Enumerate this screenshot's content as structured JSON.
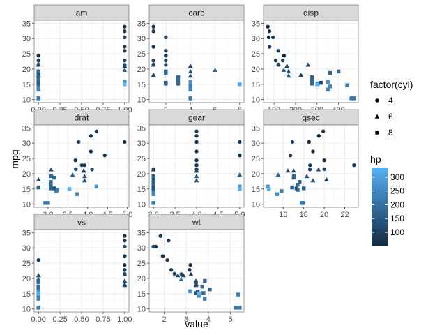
{
  "chart_data": {
    "type": "scatter",
    "xlabel": "value",
    "ylabel": "mpg",
    "ylim": [
      9,
      36
    ],
    "yticks": [
      10,
      15,
      20,
      25,
      30,
      35
    ],
    "grid": true,
    "legend_placement": "right",
    "shape_legend": {
      "title": "factor(cyl)",
      "items": [
        {
          "label": "4",
          "shape": "circle"
        },
        {
          "label": "6",
          "shape": "triangle"
        },
        {
          "label": "8",
          "shape": "square"
        }
      ]
    },
    "color_legend": {
      "title": "hp",
      "range": [
        52,
        335
      ],
      "ticks": [
        100,
        150,
        200,
        250,
        300
      ],
      "low_color": "#132B43",
      "high_color": "#56B1F7"
    },
    "colors": {
      "strip_bg": "#d9d9d9",
      "panel_border": "#7f7f7f",
      "grid_major": "#ebebeb",
      "grid_minor": "#f5f5f5"
    },
    "cars": [
      {
        "mpg": 21.0,
        "cyl": 6,
        "disp": 160.0,
        "hp": 110,
        "drat": 3.9,
        "wt": 2.62,
        "qsec": 16.46,
        "vs": 0,
        "am": 1,
        "gear": 4,
        "carb": 4
      },
      {
        "mpg": 21.0,
        "cyl": 6,
        "disp": 160.0,
        "hp": 110,
        "drat": 3.9,
        "wt": 2.875,
        "qsec": 17.02,
        "vs": 0,
        "am": 1,
        "gear": 4,
        "carb": 4
      },
      {
        "mpg": 22.8,
        "cyl": 4,
        "disp": 108.0,
        "hp": 93,
        "drat": 3.85,
        "wt": 2.32,
        "qsec": 18.61,
        "vs": 1,
        "am": 1,
        "gear": 4,
        "carb": 1
      },
      {
        "mpg": 21.4,
        "cyl": 6,
        "disp": 258.0,
        "hp": 110,
        "drat": 3.08,
        "wt": 3.215,
        "qsec": 19.44,
        "vs": 1,
        "am": 0,
        "gear": 3,
        "carb": 1
      },
      {
        "mpg": 18.7,
        "cyl": 8,
        "disp": 360.0,
        "hp": 175,
        "drat": 3.15,
        "wt": 3.44,
        "qsec": 17.02,
        "vs": 0,
        "am": 0,
        "gear": 3,
        "carb": 2
      },
      {
        "mpg": 18.1,
        "cyl": 6,
        "disp": 225.0,
        "hp": 105,
        "drat": 2.76,
        "wt": 3.46,
        "qsec": 20.22,
        "vs": 1,
        "am": 0,
        "gear": 3,
        "carb": 1
      },
      {
        "mpg": 14.3,
        "cyl": 8,
        "disp": 360.0,
        "hp": 245,
        "drat": 3.21,
        "wt": 3.57,
        "qsec": 15.84,
        "vs": 0,
        "am": 0,
        "gear": 3,
        "carb": 4
      },
      {
        "mpg": 24.4,
        "cyl": 4,
        "disp": 146.7,
        "hp": 62,
        "drat": 3.69,
        "wt": 3.19,
        "qsec": 20.0,
        "vs": 1,
        "am": 0,
        "gear": 4,
        "carb": 2
      },
      {
        "mpg": 22.8,
        "cyl": 4,
        "disp": 140.8,
        "hp": 95,
        "drat": 3.92,
        "wt": 3.15,
        "qsec": 22.9,
        "vs": 1,
        "am": 0,
        "gear": 4,
        "carb": 2
      },
      {
        "mpg": 19.2,
        "cyl": 6,
        "disp": 167.6,
        "hp": 123,
        "drat": 3.92,
        "wt": 3.44,
        "qsec": 18.3,
        "vs": 1,
        "am": 0,
        "gear": 4,
        "carb": 4
      },
      {
        "mpg": 17.8,
        "cyl": 6,
        "disp": 167.6,
        "hp": 123,
        "drat": 3.92,
        "wt": 3.44,
        "qsec": 18.9,
        "vs": 1,
        "am": 0,
        "gear": 4,
        "carb": 4
      },
      {
        "mpg": 16.4,
        "cyl": 8,
        "disp": 275.8,
        "hp": 180,
        "drat": 3.07,
        "wt": 4.07,
        "qsec": 17.4,
        "vs": 0,
        "am": 0,
        "gear": 3,
        "carb": 3
      },
      {
        "mpg": 17.3,
        "cyl": 8,
        "disp": 275.8,
        "hp": 180,
        "drat": 3.07,
        "wt": 3.73,
        "qsec": 17.6,
        "vs": 0,
        "am": 0,
        "gear": 3,
        "carb": 3
      },
      {
        "mpg": 15.2,
        "cyl": 8,
        "disp": 275.8,
        "hp": 180,
        "drat": 3.07,
        "wt": 3.78,
        "qsec": 18.0,
        "vs": 0,
        "am": 0,
        "gear": 3,
        "carb": 3
      },
      {
        "mpg": 10.4,
        "cyl": 8,
        "disp": 472.0,
        "hp": 205,
        "drat": 2.93,
        "wt": 5.25,
        "qsec": 17.98,
        "vs": 0,
        "am": 0,
        "gear": 3,
        "carb": 4
      },
      {
        "mpg": 10.4,
        "cyl": 8,
        "disp": 460.0,
        "hp": 215,
        "drat": 3.0,
        "wt": 5.424,
        "qsec": 17.82,
        "vs": 0,
        "am": 0,
        "gear": 3,
        "carb": 4
      },
      {
        "mpg": 14.7,
        "cyl": 8,
        "disp": 440.0,
        "hp": 230,
        "drat": 3.23,
        "wt": 5.345,
        "qsec": 17.42,
        "vs": 0,
        "am": 0,
        "gear": 3,
        "carb": 4
      },
      {
        "mpg": 32.4,
        "cyl": 4,
        "disp": 78.7,
        "hp": 66,
        "drat": 4.08,
        "wt": 2.2,
        "qsec": 19.47,
        "vs": 1,
        "am": 1,
        "gear": 4,
        "carb": 1
      },
      {
        "mpg": 30.4,
        "cyl": 4,
        "disp": 75.7,
        "hp": 52,
        "drat": 4.93,
        "wt": 1.615,
        "qsec": 18.52,
        "vs": 1,
        "am": 1,
        "gear": 4,
        "carb": 2
      },
      {
        "mpg": 33.9,
        "cyl": 4,
        "disp": 71.1,
        "hp": 65,
        "drat": 4.22,
        "wt": 1.835,
        "qsec": 19.9,
        "vs": 1,
        "am": 1,
        "gear": 4,
        "carb": 1
      },
      {
        "mpg": 21.5,
        "cyl": 4,
        "disp": 120.1,
        "hp": 97,
        "drat": 3.7,
        "wt": 2.465,
        "qsec": 20.01,
        "vs": 1,
        "am": 0,
        "gear": 3,
        "carb": 1
      },
      {
        "mpg": 15.5,
        "cyl": 8,
        "disp": 318.0,
        "hp": 150,
        "drat": 2.76,
        "wt": 3.52,
        "qsec": 16.87,
        "vs": 0,
        "am": 0,
        "gear": 3,
        "carb": 2
      },
      {
        "mpg": 15.2,
        "cyl": 8,
        "disp": 304.0,
        "hp": 150,
        "drat": 3.15,
        "wt": 3.435,
        "qsec": 17.3,
        "vs": 0,
        "am": 0,
        "gear": 3,
        "carb": 2
      },
      {
        "mpg": 13.3,
        "cyl": 8,
        "disp": 350.0,
        "hp": 245,
        "drat": 3.73,
        "wt": 3.84,
        "qsec": 15.41,
        "vs": 0,
        "am": 0,
        "gear": 3,
        "carb": 4
      },
      {
        "mpg": 19.2,
        "cyl": 8,
        "disp": 400.0,
        "hp": 175,
        "drat": 3.08,
        "wt": 3.845,
        "qsec": 17.05,
        "vs": 0,
        "am": 0,
        "gear": 3,
        "carb": 2
      },
      {
        "mpg": 27.3,
        "cyl": 4,
        "disp": 79.0,
        "hp": 66,
        "drat": 4.08,
        "wt": 1.935,
        "qsec": 18.9,
        "vs": 1,
        "am": 1,
        "gear": 4,
        "carb": 1
      },
      {
        "mpg": 26.0,
        "cyl": 4,
        "disp": 120.3,
        "hp": 91,
        "drat": 4.43,
        "wt": 2.14,
        "qsec": 16.7,
        "vs": 0,
        "am": 1,
        "gear": 5,
        "carb": 2
      },
      {
        "mpg": 30.4,
        "cyl": 4,
        "disp": 95.1,
        "hp": 113,
        "drat": 3.77,
        "wt": 1.513,
        "qsec": 16.9,
        "vs": 1,
        "am": 1,
        "gear": 5,
        "carb": 2
      },
      {
        "mpg": 15.8,
        "cyl": 8,
        "disp": 351.0,
        "hp": 264,
        "drat": 4.22,
        "wt": 3.17,
        "qsec": 14.5,
        "vs": 0,
        "am": 1,
        "gear": 5,
        "carb": 4
      },
      {
        "mpg": 19.7,
        "cyl": 6,
        "disp": 145.0,
        "hp": 175,
        "drat": 3.62,
        "wt": 2.77,
        "qsec": 15.5,
        "vs": 0,
        "am": 1,
        "gear": 5,
        "carb": 6
      },
      {
        "mpg": 15.0,
        "cyl": 8,
        "disp": 301.0,
        "hp": 335,
        "drat": 3.54,
        "wt": 3.57,
        "qsec": 14.6,
        "vs": 0,
        "am": 1,
        "gear": 5,
        "carb": 8
      },
      {
        "mpg": 21.4,
        "cyl": 4,
        "disp": 121.0,
        "hp": 109,
        "drat": 4.11,
        "wt": 2.78,
        "qsec": 18.6,
        "vs": 1,
        "am": 1,
        "gear": 4,
        "carb": 2
      }
    ],
    "panels": [
      {
        "name": "am",
        "key": "am",
        "xlim": [
          -0.05,
          1.05
        ],
        "xticks": [
          0,
          0.25,
          0.5,
          0.75,
          1
        ],
        "xtick_labels": [
          "0.00",
          "0.25",
          "0.50",
          "0.75",
          "1.00"
        ]
      },
      {
        "name": "carb",
        "key": "carb",
        "xlim": [
          0.65,
          8.35
        ],
        "xticks": [
          2,
          4,
          6,
          8
        ],
        "xtick_labels": [
          "2",
          "4",
          "6",
          "8"
        ]
      },
      {
        "name": "disp",
        "key": "disp",
        "xlim": [
          51,
          492
        ],
        "xticks": [
          100,
          200,
          300,
          400
        ],
        "xtick_labels": [
          "100",
          "200",
          "300",
          "400"
        ]
      },
      {
        "name": "drat",
        "key": "drat",
        "xlim": [
          2.65,
          5.04
        ],
        "xticks": [
          3,
          3.5,
          4,
          4.5,
          5
        ],
        "xtick_labels": [
          "3.0",
          "3.5",
          "4.0",
          "4.5",
          "5.0"
        ]
      },
      {
        "name": "gear",
        "key": "gear",
        "xlim": [
          2.9,
          5.1
        ],
        "xticks": [
          3,
          3.5,
          4,
          4.5,
          5
        ],
        "xtick_labels": [
          "3.0",
          "3.5",
          "4.0",
          "4.5",
          "5.0"
        ]
      },
      {
        "name": "qsec",
        "key": "qsec",
        "xlim": [
          14.08,
          23.32
        ],
        "xticks": [
          16,
          18,
          20,
          22
        ],
        "xtick_labels": [
          "16",
          "18",
          "20",
          "22"
        ]
      },
      {
        "name": "vs",
        "key": "vs",
        "xlim": [
          -0.05,
          1.05
        ],
        "xticks": [
          0,
          0.25,
          0.5,
          0.75,
          1
        ],
        "xtick_labels": [
          "0.00",
          "0.25",
          "0.50",
          "0.75",
          "1.00"
        ]
      },
      {
        "name": "wt",
        "key": "wt",
        "xlim": [
          1.32,
          5.62
        ],
        "xticks": [
          2,
          3,
          4,
          5
        ],
        "xtick_labels": [
          "2",
          "3",
          "4",
          "5"
        ]
      }
    ]
  }
}
